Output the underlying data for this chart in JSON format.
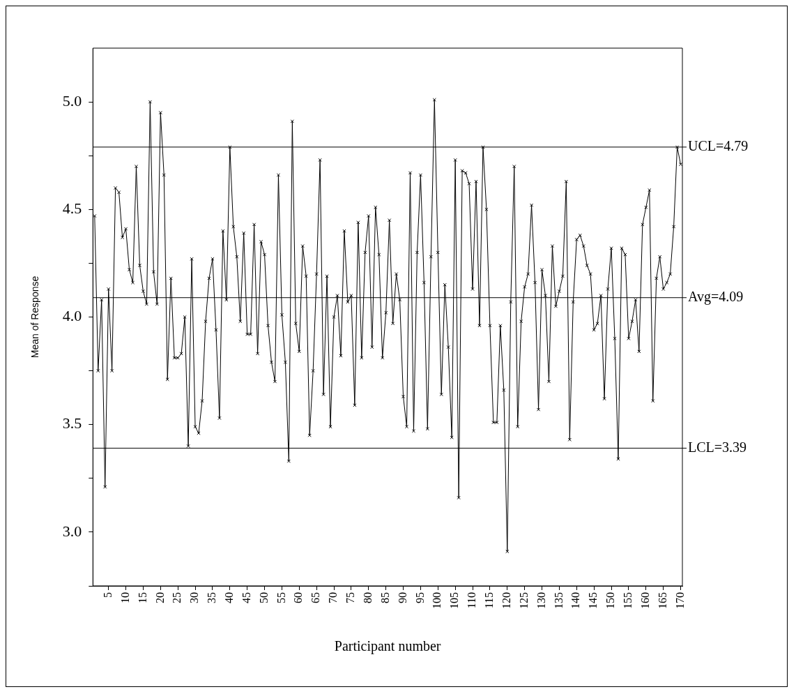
{
  "chart_data": {
    "type": "line",
    "xlabel": "Participant number",
    "ylabel": "Mean of Response",
    "categories": [
      null,
      null,
      null,
      null,
      "5",
      null,
      null,
      null,
      null,
      "10",
      null,
      null,
      null,
      null,
      "15",
      null,
      null,
      null,
      null,
      "20",
      null,
      null,
      null,
      null,
      "25",
      null,
      null,
      null,
      null,
      "30",
      null,
      null,
      null,
      null,
      "35",
      null,
      null,
      null,
      null,
      "40",
      null,
      null,
      null,
      null,
      "45",
      null,
      null,
      null,
      null,
      "50",
      null,
      null,
      null,
      null,
      "55",
      null,
      null,
      null,
      null,
      "60",
      null,
      null,
      null,
      null,
      "65",
      null,
      null,
      null,
      null,
      "70",
      null,
      null,
      null,
      null,
      "75",
      null,
      null,
      null,
      null,
      "80",
      null,
      null,
      null,
      null,
      "85",
      null,
      null,
      null,
      null,
      "90",
      null,
      null,
      null,
      null,
      "95",
      null,
      null,
      null,
      null,
      "100",
      null,
      null,
      null,
      null,
      "105",
      null,
      null,
      null,
      null,
      "110",
      null,
      null,
      null,
      null,
      "115",
      null,
      null,
      null,
      null,
      "120",
      null,
      null,
      null,
      null,
      "125",
      null,
      null,
      null,
      null,
      "130",
      null,
      null,
      null,
      null,
      "135",
      null,
      null,
      null,
      null,
      "140",
      null,
      null,
      null,
      null,
      "145",
      null,
      null,
      null,
      null,
      "150",
      null,
      null,
      null,
      null,
      "155",
      null,
      null,
      null,
      null,
      "160",
      null,
      null,
      null,
      null,
      "165",
      null,
      null,
      null,
      null,
      "170"
    ],
    "series": [
      {
        "color": "#000000",
        "values": [
          4.47,
          3.75,
          4.08,
          3.21,
          4.13,
          3.75,
          4.6,
          4.58,
          4.37,
          4.41,
          4.22,
          4.16,
          4.7,
          4.24,
          4.12,
          4.06,
          5.0,
          4.21,
          4.06,
          4.95,
          4.66,
          3.71,
          4.18,
          3.81,
          3.81,
          3.83,
          4.0,
          3.4,
          4.27,
          3.49,
          3.46,
          3.61,
          3.98,
          4.18,
          4.27,
          3.94,
          3.53,
          4.4,
          4.08,
          4.79,
          4.42,
          4.28,
          3.98,
          4.39,
          3.92,
          3.92,
          4.43,
          3.83,
          4.35,
          4.29,
          3.96,
          3.79,
          3.7,
          4.66,
          4.01,
          3.79,
          3.33,
          4.91,
          3.97,
          3.84,
          4.33,
          4.19,
          3.45,
          3.75,
          4.2,
          4.73,
          3.64,
          4.19,
          3.49,
          4.0,
          4.1,
          3.82,
          4.4,
          4.07,
          4.1,
          3.59,
          4.44,
          3.81,
          4.3,
          4.47,
          3.86,
          4.51,
          4.29,
          3.81,
          4.02,
          4.45,
          3.97,
          4.2,
          4.08,
          3.63,
          3.49,
          4.67,
          3.47,
          4.3,
          4.66,
          4.16,
          3.48,
          4.28,
          5.01,
          4.3,
          3.64,
          4.15,
          3.86,
          3.44,
          4.73,
          3.16,
          4.68,
          4.67,
          4.62,
          4.13,
          4.63,
          3.96,
          4.79,
          4.5,
          3.96,
          3.51,
          3.51,
          3.96,
          3.66,
          2.91,
          4.07,
          4.7,
          3.49,
          3.98,
          4.14,
          4.2,
          4.52,
          4.16,
          3.57,
          4.22,
          4.1,
          3.7,
          4.33,
          4.05,
          4.12,
          4.19,
          4.63,
          3.43,
          4.07,
          4.36,
          4.38,
          4.33,
          4.24,
          4.2,
          3.94,
          3.97,
          4.1,
          3.62,
          4.13,
          4.32,
          3.9,
          3.34,
          4.32,
          4.29,
          3.9,
          3.98,
          4.08,
          3.84,
          4.43,
          4.51,
          4.59,
          3.61,
          4.18,
          4.28,
          4.13,
          4.16,
          4.2,
          4.42,
          4.79,
          4.71
        ]
      }
    ],
    "ylim": [
      2.75,
      5.25
    ],
    "yticks": [
      {
        "value": 2.75,
        "label": null
      },
      {
        "value": 3,
        "label": "3.0"
      },
      {
        "value": 3.25,
        "label": null
      },
      {
        "value": 3.5,
        "label": "3.5"
      },
      {
        "value": 3.75,
        "label": null
      },
      {
        "value": 4,
        "label": "4.0"
      },
      {
        "value": 4.25,
        "label": null
      },
      {
        "value": 4.5,
        "label": "4.5"
      },
      {
        "value": 4.75,
        "label": null
      },
      {
        "value": 5,
        "label": "5.0"
      }
    ],
    "ref_lines": [
      {
        "axis": "y",
        "value": 4.79,
        "label": "UCL=4.79"
      },
      {
        "axis": "y",
        "value": 4.09,
        "label": "Avg=4.09"
      },
      {
        "axis": "y",
        "value": 3.39,
        "label": "LCL=3.39"
      }
    ],
    "marker": "cross",
    "line_style": "solid",
    "grid": false,
    "legend": false
  }
}
